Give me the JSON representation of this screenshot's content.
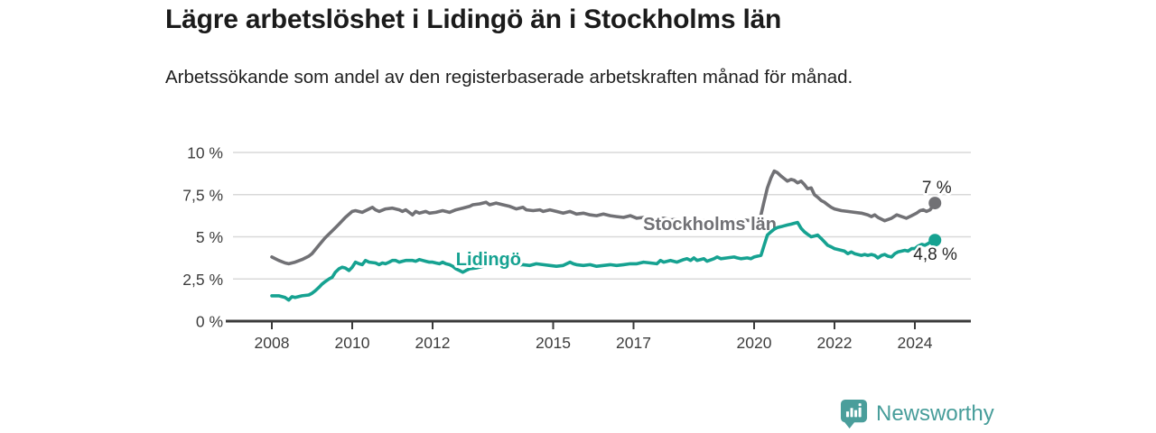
{
  "header": {
    "title": "Lägre arbetslöshet i Lidingö än i Stockholms län",
    "subtitle": "Arbetssökande som andel av den registerbaserade arbetskraften månad för månad."
  },
  "footer": {
    "brand": "Newsworthy",
    "logo_icon": "bar-chart-speech-bubble-icon"
  },
  "colors": {
    "lidingo_teal": "#16a291",
    "stockholm_gray": "#717175",
    "grid_gray": "#d9d9d9",
    "axis_dark": "#3b3b3b",
    "tick_text": "#3d3d3d",
    "end_label_text": "#282828",
    "brand_teal": "#479d9a",
    "background": "#ffffff"
  },
  "chart_data": {
    "type": "line",
    "title": "Lägre arbetslöshet i Lidingö än i Stockholms län",
    "subtitle": "Arbetssökande som andel av den registerbaserade arbetskraften månad för månad.",
    "unit": "%",
    "grid": true,
    "legend_position": "inline-labels",
    "xlim": [
      2006.85,
      2025.4
    ],
    "ylim": [
      0,
      10
    ],
    "y_ticks": [
      {
        "value": 0,
        "label": "0 %"
      },
      {
        "value": 2.5,
        "label": "2,5 %"
      },
      {
        "value": 5,
        "label": "5 %"
      },
      {
        "value": 7.5,
        "label": "7,5 %"
      },
      {
        "value": 10,
        "label": "10 %"
      }
    ],
    "x_ticks": [
      {
        "value": 2008,
        "label": "2008"
      },
      {
        "value": 2010,
        "label": "2010"
      },
      {
        "value": 2012,
        "label": "2012"
      },
      {
        "value": 2015,
        "label": "2015"
      },
      {
        "value": 2017,
        "label": "2017"
      },
      {
        "value": 2020,
        "label": "2020"
      },
      {
        "value": 2022,
        "label": "2022"
      },
      {
        "value": 2024,
        "label": "2024"
      }
    ],
    "series": [
      {
        "name": "Stockholms län",
        "color": "#717175",
        "end_label": "7 %",
        "end_value": 7.0,
        "label_pos": {
          "x": 2017.24,
          "y": 5.78
        },
        "points": [
          [
            2008.0,
            3.8
          ],
          [
            2008.17,
            3.6
          ],
          [
            2008.33,
            3.45
          ],
          [
            2008.42,
            3.4
          ],
          [
            2008.58,
            3.5
          ],
          [
            2008.75,
            3.65
          ],
          [
            2008.92,
            3.85
          ],
          [
            2009.0,
            4.0
          ],
          [
            2009.17,
            4.5
          ],
          [
            2009.33,
            4.95
          ],
          [
            2009.5,
            5.35
          ],
          [
            2009.67,
            5.75
          ],
          [
            2009.83,
            6.15
          ],
          [
            2010.0,
            6.5
          ],
          [
            2010.08,
            6.55
          ],
          [
            2010.25,
            6.45
          ],
          [
            2010.42,
            6.65
          ],
          [
            2010.5,
            6.75
          ],
          [
            2010.58,
            6.6
          ],
          [
            2010.67,
            6.5
          ],
          [
            2010.83,
            6.65
          ],
          [
            2011.0,
            6.7
          ],
          [
            2011.17,
            6.6
          ],
          [
            2011.25,
            6.5
          ],
          [
            2011.33,
            6.6
          ],
          [
            2011.5,
            6.3
          ],
          [
            2011.58,
            6.5
          ],
          [
            2011.67,
            6.4
          ],
          [
            2011.83,
            6.5
          ],
          [
            2011.92,
            6.4
          ],
          [
            2012.08,
            6.45
          ],
          [
            2012.25,
            6.55
          ],
          [
            2012.42,
            6.45
          ],
          [
            2012.58,
            6.6
          ],
          [
            2012.75,
            6.7
          ],
          [
            2012.92,
            6.8
          ],
          [
            2013.0,
            6.9
          ],
          [
            2013.17,
            6.95
          ],
          [
            2013.33,
            7.05
          ],
          [
            2013.42,
            6.9
          ],
          [
            2013.58,
            7.0
          ],
          [
            2013.75,
            6.9
          ],
          [
            2013.92,
            6.8
          ],
          [
            2014.08,
            6.65
          ],
          [
            2014.25,
            6.75
          ],
          [
            2014.33,
            6.6
          ],
          [
            2014.5,
            6.55
          ],
          [
            2014.67,
            6.6
          ],
          [
            2014.75,
            6.5
          ],
          [
            2014.92,
            6.6
          ],
          [
            2015.08,
            6.5
          ],
          [
            2015.25,
            6.4
          ],
          [
            2015.42,
            6.5
          ],
          [
            2015.58,
            6.35
          ],
          [
            2015.75,
            6.4
          ],
          [
            2015.92,
            6.3
          ],
          [
            2016.08,
            6.25
          ],
          [
            2016.25,
            6.35
          ],
          [
            2016.42,
            6.25
          ],
          [
            2016.58,
            6.2
          ],
          [
            2016.75,
            6.15
          ],
          [
            2016.92,
            6.25
          ],
          [
            2017.08,
            6.1
          ],
          [
            2017.25,
            6.15
          ],
          [
            2017.42,
            6.1
          ],
          [
            2017.58,
            6.05
          ],
          [
            2017.75,
            6.1
          ],
          [
            2017.92,
            6.0
          ],
          [
            2018.08,
            6.05
          ],
          [
            2018.25,
            5.95
          ],
          [
            2018.42,
            6.0
          ],
          [
            2018.58,
            5.9
          ],
          [
            2018.75,
            5.95
          ],
          [
            2018.92,
            5.9
          ],
          [
            2019.08,
            5.95
          ],
          [
            2019.25,
            5.9
          ],
          [
            2019.42,
            6.0
          ],
          [
            2019.58,
            5.95
          ],
          [
            2019.75,
            6.0
          ],
          [
            2019.92,
            5.95
          ],
          [
            2020.08,
            6.05
          ],
          [
            2020.17,
            6.3
          ],
          [
            2020.25,
            7.1
          ],
          [
            2020.33,
            7.9
          ],
          [
            2020.42,
            8.5
          ],
          [
            2020.5,
            8.9
          ],
          [
            2020.58,
            8.8
          ],
          [
            2020.67,
            8.6
          ],
          [
            2020.75,
            8.45
          ],
          [
            2020.83,
            8.3
          ],
          [
            2020.92,
            8.4
          ],
          [
            2021.0,
            8.35
          ],
          [
            2021.08,
            8.2
          ],
          [
            2021.17,
            8.3
          ],
          [
            2021.25,
            8.1
          ],
          [
            2021.33,
            7.85
          ],
          [
            2021.42,
            7.9
          ],
          [
            2021.5,
            7.5
          ],
          [
            2021.58,
            7.35
          ],
          [
            2021.67,
            7.15
          ],
          [
            2021.75,
            7.05
          ],
          [
            2021.83,
            6.9
          ],
          [
            2021.92,
            6.75
          ],
          [
            2022.0,
            6.65
          ],
          [
            2022.17,
            6.55
          ],
          [
            2022.33,
            6.5
          ],
          [
            2022.5,
            6.45
          ],
          [
            2022.67,
            6.4
          ],
          [
            2022.83,
            6.3
          ],
          [
            2022.92,
            6.2
          ],
          [
            2023.0,
            6.3
          ],
          [
            2023.08,
            6.15
          ],
          [
            2023.25,
            5.95
          ],
          [
            2023.42,
            6.1
          ],
          [
            2023.55,
            6.3
          ],
          [
            2023.67,
            6.2
          ],
          [
            2023.79,
            6.1
          ],
          [
            2023.92,
            6.25
          ],
          [
            2024.04,
            6.4
          ],
          [
            2024.13,
            6.55
          ],
          [
            2024.21,
            6.6
          ],
          [
            2024.29,
            6.5
          ],
          [
            2024.38,
            6.6
          ],
          [
            2024.5,
            7.0
          ]
        ]
      },
      {
        "name": "Lidingö",
        "color": "#16a291",
        "end_label": "4,8 %",
        "end_value": 4.8,
        "label_pos": {
          "x": 2012.58,
          "y": 3.69
        },
        "points": [
          [
            2008.0,
            1.5
          ],
          [
            2008.17,
            1.5
          ],
          [
            2008.33,
            1.4
          ],
          [
            2008.42,
            1.25
          ],
          [
            2008.5,
            1.45
          ],
          [
            2008.58,
            1.4
          ],
          [
            2008.75,
            1.5
          ],
          [
            2008.92,
            1.55
          ],
          [
            2009.0,
            1.65
          ],
          [
            2009.08,
            1.8
          ],
          [
            2009.17,
            2.0
          ],
          [
            2009.25,
            2.2
          ],
          [
            2009.33,
            2.35
          ],
          [
            2009.42,
            2.5
          ],
          [
            2009.5,
            2.6
          ],
          [
            2009.58,
            2.9
          ],
          [
            2009.67,
            3.1
          ],
          [
            2009.75,
            3.2
          ],
          [
            2009.83,
            3.15
          ],
          [
            2009.92,
            3.0
          ],
          [
            2010.0,
            3.2
          ],
          [
            2010.08,
            3.5
          ],
          [
            2010.17,
            3.4
          ],
          [
            2010.25,
            3.35
          ],
          [
            2010.33,
            3.6
          ],
          [
            2010.42,
            3.5
          ],
          [
            2010.58,
            3.45
          ],
          [
            2010.67,
            3.35
          ],
          [
            2010.75,
            3.45
          ],
          [
            2010.83,
            3.4
          ],
          [
            2010.92,
            3.5
          ],
          [
            2011.0,
            3.6
          ],
          [
            2011.08,
            3.6
          ],
          [
            2011.17,
            3.5
          ],
          [
            2011.25,
            3.55
          ],
          [
            2011.33,
            3.6
          ],
          [
            2011.5,
            3.6
          ],
          [
            2011.58,
            3.55
          ],
          [
            2011.67,
            3.65
          ],
          [
            2011.75,
            3.6
          ],
          [
            2011.83,
            3.55
          ],
          [
            2011.92,
            3.5
          ],
          [
            2012.0,
            3.5
          ],
          [
            2012.08,
            3.45
          ],
          [
            2012.17,
            3.4
          ],
          [
            2012.25,
            3.5
          ],
          [
            2012.33,
            3.4
          ],
          [
            2012.42,
            3.35
          ],
          [
            2012.5,
            3.25
          ],
          [
            2012.58,
            3.1
          ],
          [
            2012.67,
            3.0
          ],
          [
            2012.75,
            2.9
          ],
          [
            2012.83,
            3.0
          ],
          [
            2012.92,
            3.1
          ],
          [
            2013.08,
            3.15
          ],
          [
            2013.25,
            3.25
          ],
          [
            2013.42,
            3.3
          ],
          [
            2013.58,
            3.35
          ],
          [
            2013.75,
            3.3
          ],
          [
            2013.92,
            3.35
          ],
          [
            2014.08,
            3.3
          ],
          [
            2014.25,
            3.35
          ],
          [
            2014.42,
            3.3
          ],
          [
            2014.58,
            3.4
          ],
          [
            2014.75,
            3.35
          ],
          [
            2014.92,
            3.3
          ],
          [
            2015.08,
            3.25
          ],
          [
            2015.25,
            3.3
          ],
          [
            2015.42,
            3.5
          ],
          [
            2015.5,
            3.4
          ],
          [
            2015.58,
            3.35
          ],
          [
            2015.75,
            3.3
          ],
          [
            2015.92,
            3.35
          ],
          [
            2016.08,
            3.25
          ],
          [
            2016.25,
            3.3
          ],
          [
            2016.42,
            3.35
          ],
          [
            2016.58,
            3.3
          ],
          [
            2016.75,
            3.35
          ],
          [
            2016.92,
            3.4
          ],
          [
            2017.08,
            3.4
          ],
          [
            2017.25,
            3.5
          ],
          [
            2017.42,
            3.45
          ],
          [
            2017.58,
            3.4
          ],
          [
            2017.67,
            3.6
          ],
          [
            2017.75,
            3.5
          ],
          [
            2017.92,
            3.6
          ],
          [
            2018.08,
            3.5
          ],
          [
            2018.25,
            3.65
          ],
          [
            2018.33,
            3.7
          ],
          [
            2018.42,
            3.6
          ],
          [
            2018.5,
            3.75
          ],
          [
            2018.58,
            3.6
          ],
          [
            2018.75,
            3.7
          ],
          [
            2018.83,
            3.55
          ],
          [
            2019.0,
            3.7
          ],
          [
            2019.08,
            3.8
          ],
          [
            2019.17,
            3.7
          ],
          [
            2019.33,
            3.75
          ],
          [
            2019.5,
            3.8
          ],
          [
            2019.58,
            3.75
          ],
          [
            2019.67,
            3.7
          ],
          [
            2019.83,
            3.75
          ],
          [
            2019.92,
            3.7
          ],
          [
            2020.0,
            3.8
          ],
          [
            2020.08,
            3.85
          ],
          [
            2020.17,
            3.9
          ],
          [
            2020.25,
            4.5
          ],
          [
            2020.33,
            5.1
          ],
          [
            2020.42,
            5.3
          ],
          [
            2020.5,
            5.45
          ],
          [
            2020.58,
            5.55
          ],
          [
            2020.67,
            5.6
          ],
          [
            2020.75,
            5.65
          ],
          [
            2020.83,
            5.7
          ],
          [
            2020.92,
            5.75
          ],
          [
            2021.0,
            5.8
          ],
          [
            2021.08,
            5.85
          ],
          [
            2021.17,
            5.5
          ],
          [
            2021.25,
            5.3
          ],
          [
            2021.33,
            5.15
          ],
          [
            2021.42,
            5.0
          ],
          [
            2021.5,
            5.05
          ],
          [
            2021.58,
            5.1
          ],
          [
            2021.67,
            4.9
          ],
          [
            2021.75,
            4.7
          ],
          [
            2021.83,
            4.5
          ],
          [
            2021.92,
            4.4
          ],
          [
            2022.0,
            4.3
          ],
          [
            2022.08,
            4.25
          ],
          [
            2022.17,
            4.2
          ],
          [
            2022.25,
            4.15
          ],
          [
            2022.33,
            4.0
          ],
          [
            2022.42,
            4.1
          ],
          [
            2022.5,
            4.0
          ],
          [
            2022.58,
            3.95
          ],
          [
            2022.67,
            3.9
          ],
          [
            2022.75,
            3.95
          ],
          [
            2022.83,
            3.9
          ],
          [
            2022.92,
            3.95
          ],
          [
            2023.0,
            3.9
          ],
          [
            2023.08,
            3.75
          ],
          [
            2023.17,
            3.9
          ],
          [
            2023.25,
            3.95
          ],
          [
            2023.33,
            3.85
          ],
          [
            2023.42,
            3.8
          ],
          [
            2023.5,
            4.0
          ],
          [
            2023.58,
            4.1
          ],
          [
            2023.67,
            4.15
          ],
          [
            2023.75,
            4.2
          ],
          [
            2023.83,
            4.15
          ],
          [
            2023.92,
            4.3
          ],
          [
            2024.0,
            4.3
          ],
          [
            2024.08,
            4.45
          ],
          [
            2024.17,
            4.55
          ],
          [
            2024.25,
            4.5
          ],
          [
            2024.33,
            4.6
          ],
          [
            2024.42,
            4.75
          ],
          [
            2024.5,
            4.8
          ]
        ]
      }
    ]
  }
}
